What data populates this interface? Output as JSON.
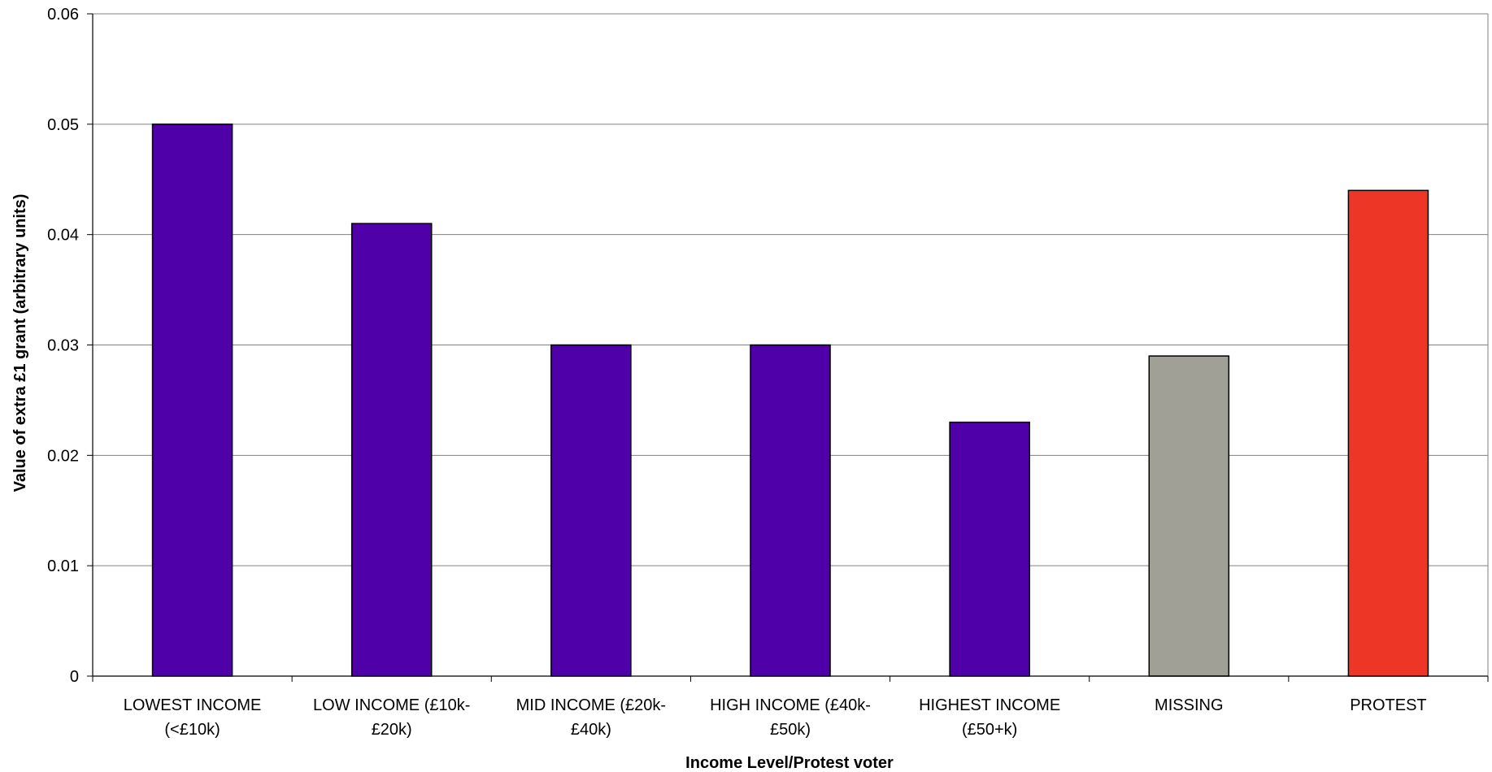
{
  "chart_data": {
    "type": "bar",
    "title": "",
    "xlabel": "Income Level/Protest voter",
    "ylabel": "Value of extra £1 grant (arbitrary units)",
    "ylim": [
      0,
      0.06
    ],
    "yticks": [
      "0",
      "0.01",
      "0.02",
      "0.03",
      "0.04",
      "0.05",
      "0.06"
    ],
    "grid": true,
    "legend": "none",
    "categories": [
      [
        "LOWEST INCOME",
        "(<£10k)"
      ],
      [
        "LOW INCOME (£10k-",
        "£20k)"
      ],
      [
        "MID INCOME (£20k-",
        "£40k)"
      ],
      [
        "HIGH INCOME (£40k-",
        "£50k)"
      ],
      [
        "HIGHEST INCOME",
        "(£50+k)"
      ],
      [
        "MISSING"
      ],
      [
        "PROTEST"
      ]
    ],
    "values": [
      0.05,
      0.041,
      0.03,
      0.03,
      0.023,
      0.029,
      0.044
    ],
    "colors": [
      "#5000A8",
      "#5000A8",
      "#5000A8",
      "#5000A8",
      "#5000A8",
      "#A0A096",
      "#EE3626"
    ]
  }
}
